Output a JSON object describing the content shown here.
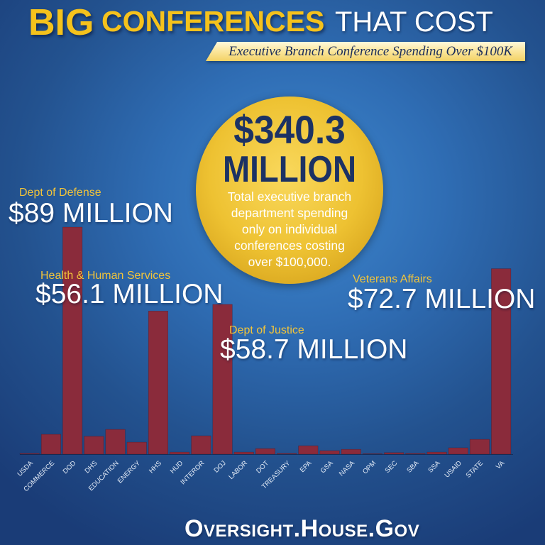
{
  "header": {
    "title_part1": "BIG",
    "title_part2": "CONFERENCES",
    "title_part3": "THAT COST",
    "subtitle": "Executive Branch Conference Spending Over $100K"
  },
  "total": {
    "amount": "$340.3",
    "unit": "MILLION",
    "description_lines": [
      "Total executive branch",
      "department spending",
      "only on individual",
      "conferences costing",
      "over $100,000."
    ]
  },
  "chart_data": {
    "type": "bar",
    "categories": [
      "USDA",
      "COMMERCE",
      "DOD",
      "DHS",
      "EDUCATION",
      "ENERGY",
      "HHS",
      "HUD",
      "INTEROR",
      "DOJ",
      "LABOR",
      "DOT",
      "TREASURY",
      "EPA",
      "GSA",
      "NASA",
      "OPM",
      "SEC",
      "SBA",
      "SSA",
      "USAID",
      "STATE",
      "VA"
    ],
    "values": [
      0.3,
      7.8,
      89,
      7.0,
      9.7,
      4.7,
      56.1,
      0.8,
      7.2,
      58.7,
      0.8,
      2.2,
      0.3,
      3.3,
      1.4,
      1.9,
      0.2,
      0.6,
      0.3,
      0.8,
      2.5,
      5.8,
      72.7
    ],
    "ylim": [
      0,
      89
    ],
    "grid": false,
    "legend": false,
    "annotations": [
      {
        "label": "Dept of Defense",
        "value_text": "$89 MILLION"
      },
      {
        "label": "Health & Human Services",
        "value_text": "$56.1 MILLION"
      },
      {
        "label": "Dept of Justice",
        "value_text": "$58.7 MILLION"
      },
      {
        "label": "Veterans Affairs",
        "value_text": "$72.7 MILLION"
      }
    ]
  },
  "footer": {
    "website": "Oversight.House.Gov"
  },
  "colors": {
    "title_gold": "#f5c21c",
    "label_gold": "#f2c43a",
    "bar": "#8a2b3b",
    "circle_gold": "#eec232",
    "amount_navy": "#1c3264",
    "background_blue": "#2f6db4"
  }
}
